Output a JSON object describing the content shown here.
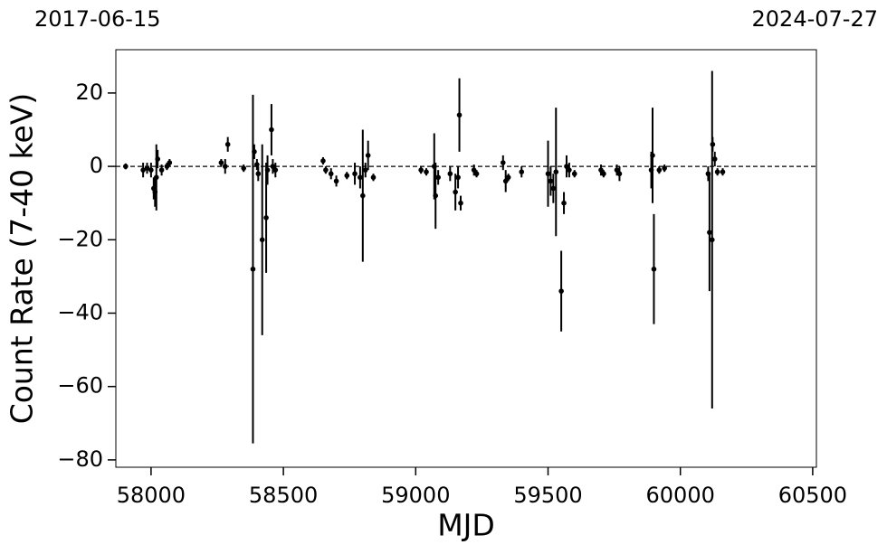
{
  "chart_data": {
    "type": "errorbar",
    "top_labels": [
      "2017-06-15",
      "2024-07-27"
    ],
    "xlabel": "MJD",
    "ylabel": "Count Rate (7-40 keV)",
    "color": "#000000",
    "reference_line": 0,
    "xlim": [
      57867,
      60514
    ],
    "ylim": [
      -82,
      31.8
    ],
    "xticks": [
      58000,
      58500,
      59000,
      59500,
      60000,
      60500
    ],
    "yticks": [
      20,
      0,
      {
        "value": -20,
        "label": "−20"
      },
      {
        "value": -40,
        "label": "−40"
      },
      {
        "value": -60,
        "label": "−60"
      },
      {
        "value": -80,
        "label": "−80"
      }
    ],
    "x": [
      57904,
      57970,
      57985,
      58000,
      58010,
      58015,
      58020,
      58025,
      58040,
      58060,
      58070,
      58265,
      58280,
      58290,
      58350,
      58385,
      58390,
      58400,
      58405,
      58420,
      58435,
      58440,
      58455,
      58460,
      58470,
      58650,
      58660,
      58680,
      58700,
      58740,
      58770,
      58790,
      58800,
      58810,
      58820,
      58840,
      59020,
      59040,
      59070,
      59075,
      59085,
      59130,
      59150,
      59160,
      59165,
      59170,
      59220,
      59230,
      59330,
      59340,
      59350,
      59400,
      59500,
      59510,
      59520,
      59530,
      59550,
      59560,
      59570,
      59580,
      59600,
      59700,
      59710,
      59760,
      59770,
      59890,
      59895,
      59900,
      59920,
      59940,
      60105,
      60110,
      60120,
      60122,
      60130,
      60140,
      60160
    ],
    "values": [
      0,
      -1,
      -0.5,
      -1,
      -6,
      -7,
      -3,
      2,
      -1,
      0,
      1,
      1,
      0,
      6,
      -0.5,
      -28,
      4,
      0.5,
      -2,
      -20,
      -14,
      -1,
      10,
      0,
      -1,
      1.5,
      -1,
      -2,
      -4,
      -2.5,
      -2,
      -3,
      -8,
      -1,
      3,
      -3,
      -1,
      -1.5,
      0,
      -8,
      -3,
      -2,
      -7,
      -3,
      14,
      -10,
      -1,
      -2,
      1,
      -4,
      -3,
      -1.5,
      -2,
      -4,
      -6,
      -1.5,
      -34,
      -10,
      0,
      -1,
      -2,
      -1,
      -2,
      -1,
      -2,
      -1,
      3,
      -28,
      -1,
      -0.5,
      -2,
      -18,
      -20,
      6,
      2,
      -1.5,
      -1.5
    ],
    "errors": [
      0.8,
      2,
      1.5,
      2,
      3,
      4,
      9,
      2.5,
      1.5,
      1,
      1,
      1,
      2,
      2,
      1,
      47.5,
      2,
      1.5,
      2,
      26,
      15,
      4,
      7,
      2,
      2,
      1,
      1,
      1.5,
      1.5,
      1,
      3,
      3,
      18,
      2,
      4,
      1,
      1,
      1,
      9,
      9,
      2,
      2,
      5,
      3,
      10,
      2,
      1.5,
      1,
      2,
      3,
      1,
      1.5,
      9,
      4,
      4,
      17.5,
      11,
      3,
      3,
      2,
      1,
      1.5,
      1,
      1.5,
      2,
      5,
      13,
      15,
      1,
      1,
      2,
      16,
      46,
      2,
      2,
      1,
      1
    ]
  }
}
